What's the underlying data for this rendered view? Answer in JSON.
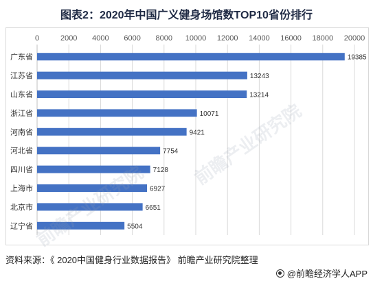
{
  "chart_data": {
    "type": "bar",
    "orientation": "horizontal",
    "title": "图表2：2020年中国广义健身场馆数TOP10省份排行",
    "categories": [
      "广东省",
      "江苏省",
      "山东省",
      "浙江省",
      "河南省",
      "河北省",
      "四川省",
      "上海市",
      "北京市",
      "辽宁省"
    ],
    "values": [
      19385,
      13243,
      13214,
      10071,
      9421,
      7754,
      7128,
      6927,
      6651,
      5504
    ],
    "xlim": [
      0,
      20000
    ],
    "x_ticks": [
      0,
      2000,
      4000,
      6000,
      8000,
      10000,
      12000,
      14000,
      16000,
      18000,
      20000
    ],
    "x_axis_position": "top",
    "grid": true,
    "bar_color": "#4472c4"
  },
  "footer": {
    "source": "资料来源：《 2020中国健身行业数据报告》 前瞻产业研究院整理",
    "brand": "@前瞻经济学人APP"
  },
  "watermark": {
    "text": "前瞻产业研究院"
  }
}
